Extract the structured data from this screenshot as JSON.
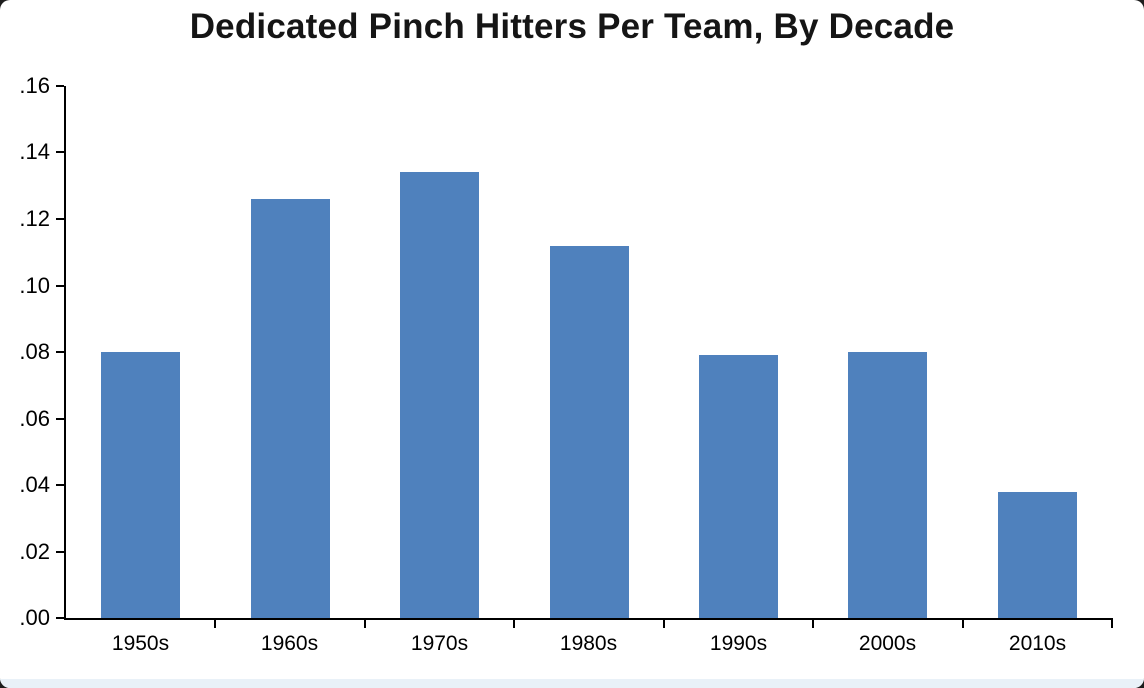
{
  "window": {
    "background": "#ffffff"
  },
  "chart_data": {
    "type": "bar",
    "title": "Dedicated Pinch Hitters Per Team, By Decade",
    "categories": [
      "1950s",
      "1960s",
      "1970s",
      "1980s",
      "1990s",
      "2000s",
      "2010s"
    ],
    "values": [
      0.08,
      0.126,
      0.134,
      0.112,
      0.079,
      0.08,
      0.038
    ],
    "xlabel": "",
    "ylabel": "",
    "ylim": [
      0,
      0.16
    ],
    "ytick_interval": 0.02,
    "ytick_labels": [
      ".00",
      ".02",
      ".04",
      ".06",
      ".08",
      ".10",
      ".12",
      ".14",
      ".16"
    ],
    "bar_color": "#4f81bd",
    "axis_color": "#000000",
    "label_color": "#000000",
    "grid": false,
    "legend_position": "none"
  }
}
